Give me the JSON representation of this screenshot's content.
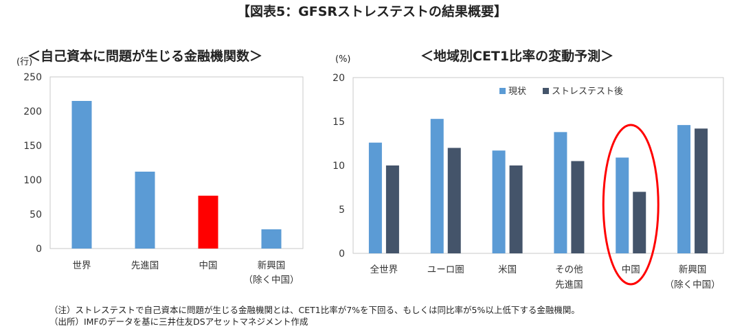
{
  "figure_title": "【図表5：GFSRストレステストの結果概要】",
  "footnotes": {
    "note": "（注）ストレステストで自己資本に問題が生じる金融機関とは、CET1比率が7%を下回る、もしくは同比率が5%以上低下する金融機関。",
    "source": "（出所）IMFのデータを基に三井住友DSアセットマネジメント作成"
  },
  "colors": {
    "blue": "#5b9bd5",
    "dark": "#44546a",
    "red": "#ff0000",
    "highlight": "#ff0000"
  },
  "chart_data": [
    {
      "type": "bar",
      "title": "＜自己資本に問題が生じる金融機関数＞",
      "ylabel": "(行)",
      "ylim": [
        0,
        250
      ],
      "yticks": [
        0,
        50,
        100,
        150,
        200,
        250
      ],
      "categories": [
        [
          "世界"
        ],
        [
          "先進国"
        ],
        [
          "中国"
        ],
        [
          "新興国",
          "（除く中国）"
        ]
      ],
      "values": [
        215,
        112,
        77,
        28
      ],
      "highlight_index": 2
    },
    {
      "type": "bar",
      "title": "＜地域別CET1比率の変動予測＞",
      "ylabel": "(%)",
      "ylim": [
        0,
        20
      ],
      "yticks": [
        0,
        5,
        10,
        15,
        20
      ],
      "categories": [
        [
          "全世界"
        ],
        [
          "ユーロ圏"
        ],
        [
          "米国"
        ],
        [
          "その他",
          "先進国"
        ],
        [
          "中国"
        ],
        [
          "新興国",
          "（除く中国）"
        ]
      ],
      "series": [
        {
          "name": "現状",
          "values": [
            12.6,
            15.3,
            11.7,
            13.8,
            10.9,
            14.6
          ]
        },
        {
          "name": "ストレステスト後",
          "values": [
            10.0,
            12.0,
            10.0,
            10.5,
            7.0,
            14.2
          ]
        }
      ],
      "highlight_category": 4
    }
  ]
}
